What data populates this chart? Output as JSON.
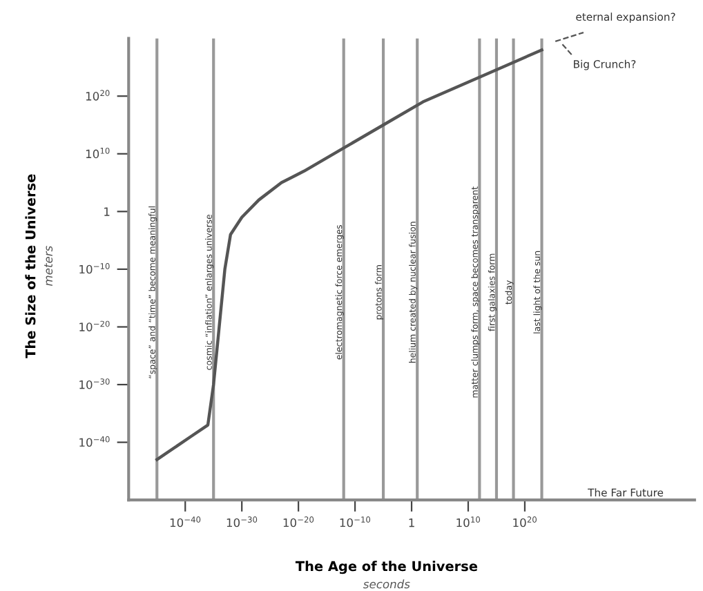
{
  "chart_data": {
    "type": "line",
    "xlabel": "The Age of the Universe\nseconds",
    "ylabel": "The Size of the Universe\nmeters",
    "x": [
      1e-45,
      1e-39,
      1e-36,
      1e-35,
      1e-34,
      1e-33,
      1e-32,
      1e-30,
      1e-27,
      1e-23,
      1e-19,
      1e-12,
      1e-05,
      100.0,
      1000000000.0,
      1e+16,
      1e+23
    ],
    "series": [
      {
        "color": "#555555",
        "values": [
          1e-43,
          1e-39,
          1e-37,
          1e-30,
          1e-20,
          1e-10,
          0.0001,
          0.1,
          100.0,
          100000.0,
          10000000.0,
          100000000000.0,
          1000000000000000.0,
          1e+19,
          1e+22,
          1e+25,
          1e+28
        ]
      }
    ],
    "xlim": [
      1e-50,
      1e+50
    ],
    "ylim": [
      1e-50,
      1e+30
    ],
    "xticks": [
      {
        "value": 1e-40,
        "label": "10$^{−40}$"
      },
      {
        "value": 1e-30,
        "label": "10$^{−30}$"
      },
      {
        "value": 1e-20,
        "label": "10$^{−20}$"
      },
      {
        "value": 1e-10,
        "label": "10$^{−10}$"
      },
      {
        "value": 1,
        "label": "1"
      },
      {
        "value": 10000000000.0,
        "label": "10$^{10}$"
      },
      {
        "value": 1e+20,
        "label": "10$^{20}$"
      }
    ],
    "yticks": [
      {
        "value": 1e-40,
        "label": "10$^{−40}$"
      },
      {
        "value": 1e-30,
        "label": "10$^{−30}$"
      },
      {
        "value": 1e-20,
        "label": "10$^{−20}$"
      },
      {
        "value": 1e-10,
        "label": "10$^{−10}$"
      },
      {
        "value": 1,
        "label": "1"
      },
      {
        "value": 10000000000.0,
        "label": "10$^{10}$"
      },
      {
        "value": 1e+20,
        "label": "10$^{20}$"
      }
    ],
    "log": "xy",
    "grid": false,
    "legend": false,
    "marker": "none",
    "line_style": "solid",
    "ref_lines": [
      {
        "axis": "x",
        "value": 1e-45,
        "label": "“space” and “time” become meaningful",
        "color": "#999999"
      },
      {
        "axis": "x",
        "value": 1e-35,
        "label": "cosmic “inflation” enlarges universe",
        "color": "#999999"
      },
      {
        "axis": "x",
        "value": 1e-12,
        "label": "electromagnetic force emerges",
        "color": "#999999"
      },
      {
        "axis": "x",
        "value": 1e-05,
        "label": "protons form",
        "color": "#999999"
      },
      {
        "axis": "x",
        "value": 10.0,
        "label": "helium created by nuclear fusion",
        "color": "#999999"
      },
      {
        "axis": "x",
        "value": 1000000000000.0,
        "label": "matter clumps form, space becomes transparent",
        "color": "#999999"
      },
      {
        "axis": "x",
        "value": 1000000000000000.0,
        "label": "first galaxies form",
        "color": "#999999"
      },
      {
        "axis": "x",
        "value": 1e+18,
        "label": "today",
        "color": "#999999"
      },
      {
        "axis": "x",
        "value": 1e+23,
        "label": "last light of the sun",
        "color": "#999999"
      }
    ],
    "annotations": [
      "eternal expansion?",
      "Big Crunch?",
      "The Far Future"
    ]
  }
}
